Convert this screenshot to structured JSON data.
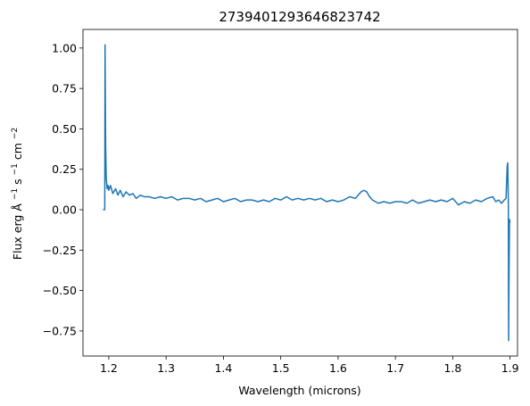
{
  "chart_data": {
    "type": "line",
    "title": "2739401293646823742",
    "xlabel": "Wavelength (microns)",
    "ylabel_parts": {
      "prefix": "Flux",
      "unit_main": "erg",
      "angstrom": "Å",
      "exp1": "−1",
      "s": " s",
      "exp2": "−1",
      "cm": " cm",
      "exp3": "−2"
    },
    "xlim": [
      1.155,
      1.913
    ],
    "ylim": [
      -0.905,
      1.115
    ],
    "xticks": [
      1.2,
      1.3,
      1.4,
      1.5,
      1.6,
      1.7,
      1.8,
      1.9
    ],
    "xtick_labels": [
      "1.2",
      "1.3",
      "1.4",
      "1.5",
      "1.6",
      "1.7",
      "1.8",
      "1.9"
    ],
    "yticks": [
      1.0,
      0.75,
      0.5,
      0.25,
      0.0,
      -0.25,
      -0.5,
      -0.75
    ],
    "ytick_labels": [
      "1.00",
      "0.75",
      "0.50",
      "0.25",
      "0.00",
      "−0.25",
      "−0.50",
      "−0.75"
    ],
    "grid": false,
    "series": [
      {
        "color": "#1f77b4",
        "x": [
          1.19,
          1.193,
          1.1935,
          1.1945,
          1.1955,
          1.197,
          1.199,
          1.2,
          1.203,
          1.207,
          1.212,
          1.216,
          1.22,
          1.225,
          1.23,
          1.236,
          1.242,
          1.248,
          1.255,
          1.262,
          1.27,
          1.28,
          1.29,
          1.3,
          1.31,
          1.32,
          1.33,
          1.34,
          1.35,
          1.36,
          1.37,
          1.38,
          1.39,
          1.4,
          1.41,
          1.42,
          1.43,
          1.44,
          1.45,
          1.46,
          1.47,
          1.48,
          1.49,
          1.5,
          1.51,
          1.52,
          1.53,
          1.54,
          1.55,
          1.56,
          1.57,
          1.58,
          1.59,
          1.6,
          1.61,
          1.62,
          1.63,
          1.64,
          1.645,
          1.65,
          1.655,
          1.66,
          1.67,
          1.68,
          1.69,
          1.7,
          1.71,
          1.72,
          1.73,
          1.74,
          1.75,
          1.76,
          1.77,
          1.78,
          1.79,
          1.8,
          1.81,
          1.82,
          1.83,
          1.84,
          1.85,
          1.86,
          1.87,
          1.875,
          1.88,
          1.885,
          1.89,
          1.893,
          1.895,
          1.896,
          1.897,
          1.8975,
          1.898,
          1.899,
          1.9
        ],
        "y": [
          0.0,
          0.0,
          1.02,
          0.4,
          0.2,
          0.13,
          0.15,
          0.12,
          0.15,
          0.1,
          0.13,
          0.09,
          0.12,
          0.08,
          0.11,
          0.09,
          0.1,
          0.07,
          0.09,
          0.08,
          0.08,
          0.07,
          0.08,
          0.07,
          0.08,
          0.06,
          0.07,
          0.07,
          0.06,
          0.07,
          0.05,
          0.06,
          0.07,
          0.05,
          0.06,
          0.07,
          0.05,
          0.06,
          0.06,
          0.05,
          0.06,
          0.05,
          0.07,
          0.06,
          0.08,
          0.06,
          0.07,
          0.06,
          0.07,
          0.06,
          0.07,
          0.05,
          0.06,
          0.05,
          0.06,
          0.08,
          0.07,
          0.11,
          0.12,
          0.11,
          0.08,
          0.06,
          0.04,
          0.05,
          0.04,
          0.05,
          0.05,
          0.04,
          0.06,
          0.04,
          0.05,
          0.06,
          0.05,
          0.06,
          0.05,
          0.07,
          0.03,
          0.05,
          0.04,
          0.06,
          0.05,
          0.07,
          0.08,
          0.05,
          0.06,
          0.04,
          0.06,
          0.07,
          0.27,
          0.29,
          0.05,
          -0.81,
          -0.5,
          -0.06,
          -0.08
        ]
      }
    ]
  }
}
